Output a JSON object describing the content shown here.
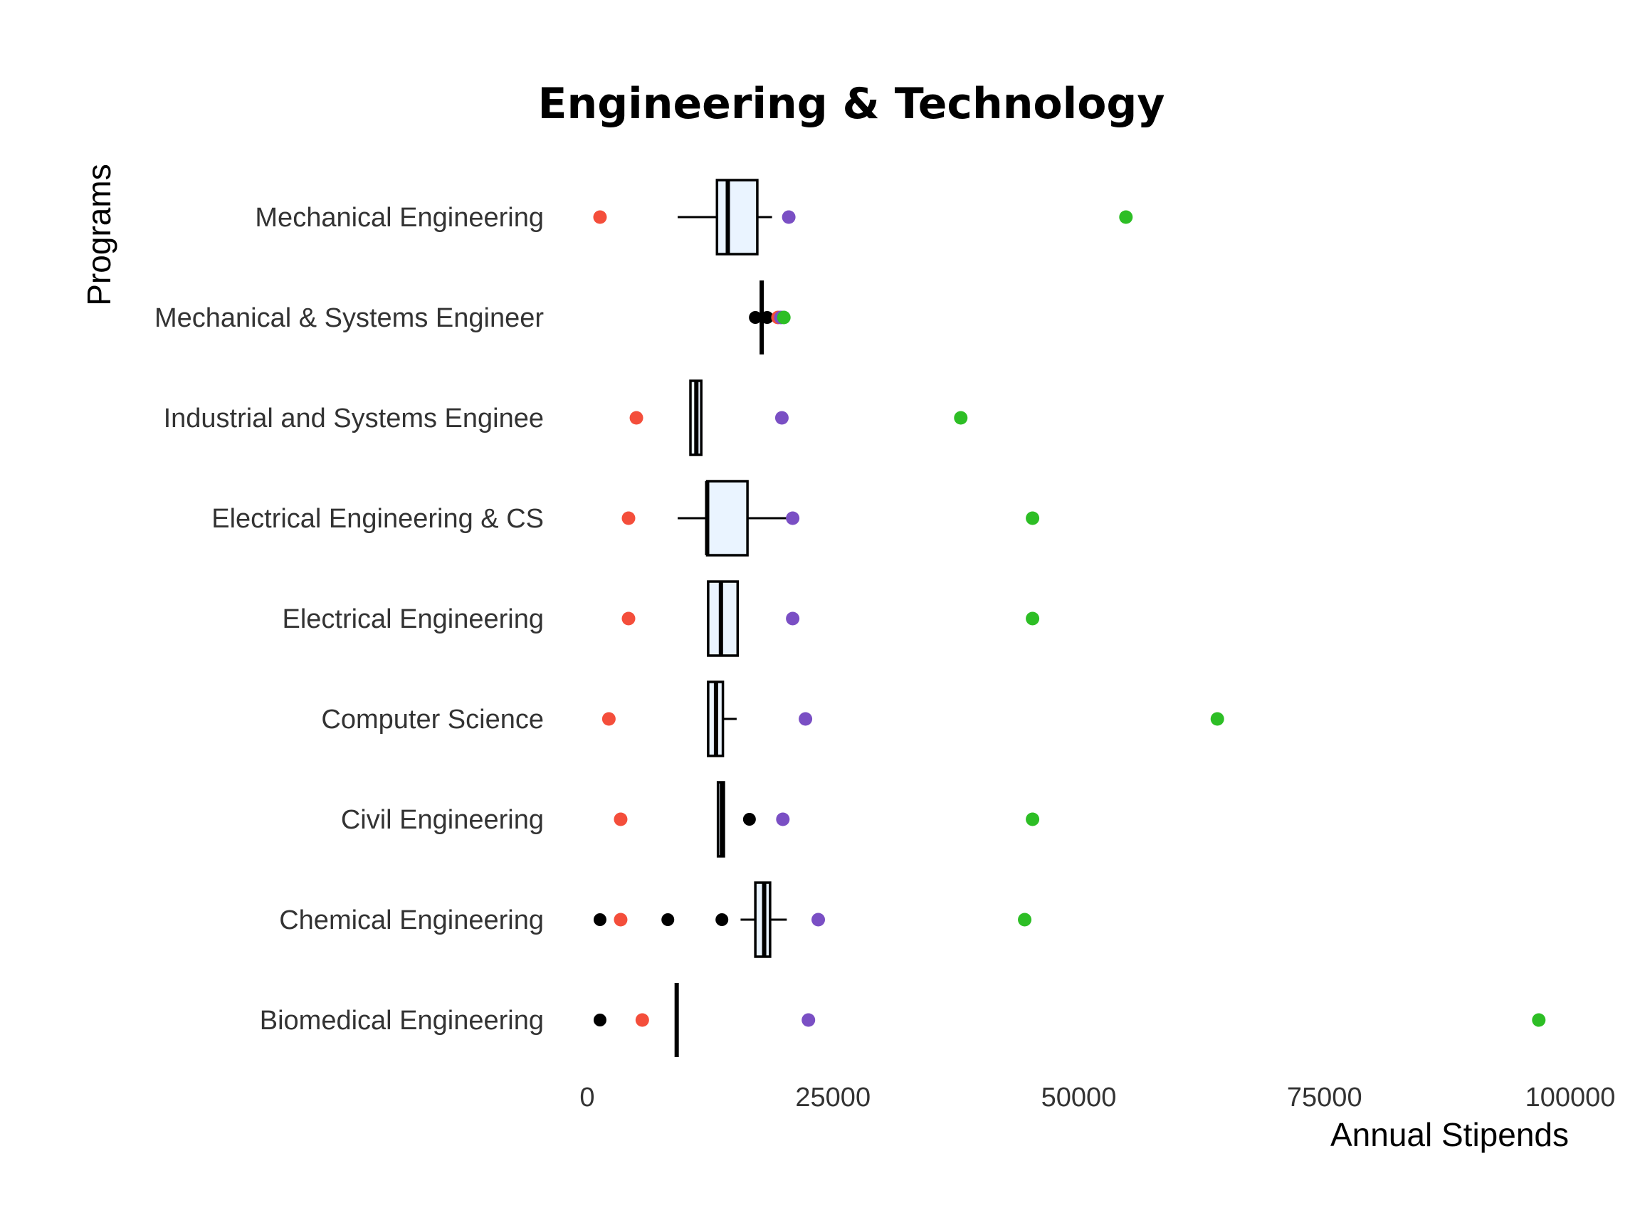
{
  "chart_data": {
    "type": "box",
    "title": "Engineering & Technology",
    "xlabel": "Annual Stipends",
    "ylabel": "Programs",
    "xlim": [
      0,
      100000
    ],
    "xticks": [
      0,
      25000,
      50000,
      75000,
      100000
    ],
    "xtick_labels": [
      "0",
      "25000",
      "50000",
      "75000",
      "100000"
    ],
    "grid": false,
    "box_fill": "#EAF4FF",
    "box_stroke": "#000000",
    "point_series": [
      {
        "key": "red",
        "color": "#F44E3B"
      },
      {
        "key": "purple",
        "color": "#7A4FC4"
      },
      {
        "key": "green",
        "color": "#2DBE25"
      }
    ],
    "categories": [
      {
        "name": "Mechanical Engineering",
        "whisker_low": 9200,
        "q1": 13200,
        "median": 14300,
        "q3": 17300,
        "whisker_high": 18800,
        "outliers": [],
        "red": 1300,
        "purple": 20500,
        "green": 54800
      },
      {
        "name": "Mechanical & Systems Engineer",
        "whisker_low": 17750,
        "q1": 17750,
        "median": 17750,
        "q3": 17750,
        "whisker_high": 17750,
        "outliers": [
          17100,
          18300
        ],
        "red": 19400,
        "purple": 19700,
        "green": 20000
      },
      {
        "name": "Industrial and Systems Enginee",
        "whisker_low": 10500,
        "q1": 10500,
        "median": 11100,
        "q3": 11600,
        "whisker_high": 11600,
        "outliers": [],
        "red": 5000,
        "purple": 19800,
        "green": 38000
      },
      {
        "name": "Electrical Engineering & CS",
        "whisker_low": 9200,
        "q1": 12200,
        "median": 12200,
        "q3": 16300,
        "whisker_high": 20500,
        "outliers": [],
        "red": 4200,
        "purple": 20900,
        "green": 45300
      },
      {
        "name": "Electrical Engineering",
        "whisker_low": 12300,
        "q1": 12300,
        "median": 13600,
        "q3": 15300,
        "whisker_high": 15300,
        "outliers": [],
        "red": 4200,
        "purple": 20900,
        "green": 45300
      },
      {
        "name": "Computer Science",
        "whisker_low": 12300,
        "q1": 12300,
        "median": 13100,
        "q3": 13800,
        "whisker_high": 15200,
        "outliers": [],
        "red": 2200,
        "purple": 22200,
        "green": 64100
      },
      {
        "name": "Civil Engineering",
        "whisker_low": 13300,
        "q1": 13300,
        "median": 13700,
        "q3": 13900,
        "whisker_high": 13900,
        "outliers": [
          16500
        ],
        "red": 3400,
        "purple": 19900,
        "green": 45300
      },
      {
        "name": "Chemical Engineering",
        "whisker_low": 15600,
        "q1": 17100,
        "median": 18000,
        "q3": 18600,
        "whisker_high": 20300,
        "outliers": [
          1300,
          8200,
          13700
        ],
        "red": 3400,
        "purple": 23500,
        "green": 44500
      },
      {
        "name": "Biomedical Engineering",
        "whisker_low": 9100,
        "q1": 9100,
        "median": 9100,
        "q3": 9100,
        "whisker_high": 9100,
        "outliers": [
          1300
        ],
        "red": 5600,
        "purple": 22500,
        "green": 96800
      }
    ]
  }
}
